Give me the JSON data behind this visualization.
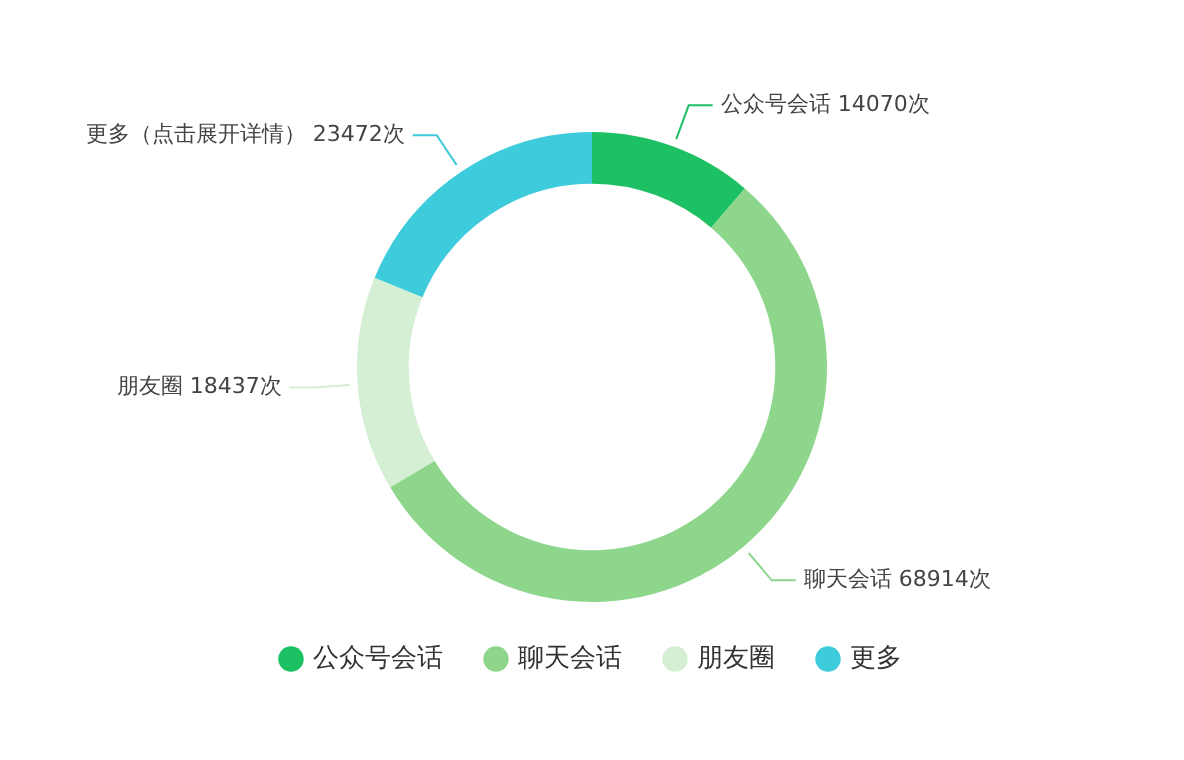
{
  "chart_data": {
    "type": "donut",
    "categories": [
      "公众号会话",
      "聊天会话",
      "朋友圈",
      "更多"
    ],
    "values": [
      14070,
      68914,
      18437,
      23472
    ],
    "colors": [
      "#1ec064",
      "#8dd68c",
      "#d4efd3",
      "#3ecbdc"
    ],
    "value_labels": [
      "公众号会话 14070次",
      "聊天会话 68914次",
      "朋友圈 18437次",
      "更多（点击展开详情） 23472次"
    ],
    "legend": "bottom"
  }
}
